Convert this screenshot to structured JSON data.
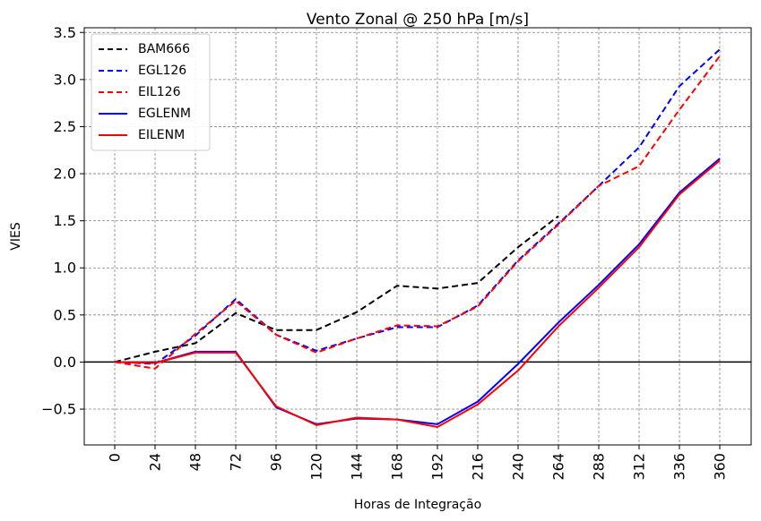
{
  "chart_data": {
    "type": "line",
    "title": "Vento Zonal @ 250 hPa [m/s]",
    "xlabel": "Horas de Integração",
    "ylabel": "VIES",
    "categories": [
      "0",
      "24",
      "48",
      "72",
      "96",
      "120",
      "144",
      "168",
      "192",
      "216",
      "240",
      "264",
      "288",
      "312",
      "336",
      "360"
    ],
    "ylim": [
      -0.88,
      3.55
    ],
    "yticks": [
      -0.5,
      0.0,
      0.5,
      1.0,
      1.5,
      2.0,
      2.5,
      3.0,
      3.5
    ],
    "ytick_labels": [
      "−0.5",
      "0.0",
      "0.5",
      "1.0",
      "1.5",
      "2.0",
      "2.5",
      "3.0",
      "3.5"
    ],
    "grid": true,
    "zero_line": true,
    "legend_position": "top-left",
    "series": [
      {
        "name": "BAM666",
        "color": "#000000",
        "style": "dashed",
        "values": [
          0.0,
          0.11,
          0.2,
          0.52,
          0.34,
          0.34,
          0.53,
          0.81,
          0.78,
          0.84,
          1.22,
          1.55,
          null,
          null,
          null,
          null
        ]
      },
      {
        "name": "EGL126",
        "color": "#0000ff",
        "style": "dashed",
        "values": [
          0.0,
          -0.02,
          0.28,
          0.67,
          0.29,
          0.12,
          0.25,
          0.37,
          0.37,
          0.6,
          1.08,
          1.47,
          1.87,
          2.28,
          2.93,
          3.32
        ]
      },
      {
        "name": "EIL126",
        "color": "#ff0000",
        "style": "dashed",
        "values": [
          0.0,
          -0.07,
          0.3,
          0.65,
          0.29,
          0.1,
          0.25,
          0.39,
          0.38,
          0.59,
          1.07,
          1.46,
          1.87,
          2.08,
          2.68,
          3.25
        ]
      },
      {
        "name": "EGLENM",
        "color": "#0000ff",
        "style": "solid",
        "values": [
          0.0,
          -0.01,
          0.11,
          0.11,
          -0.48,
          -0.66,
          -0.6,
          -0.61,
          -0.66,
          -0.42,
          -0.02,
          0.42,
          0.82,
          1.25,
          1.8,
          2.16
        ]
      },
      {
        "name": "EILENM",
        "color": "#ff0000",
        "style": "solid",
        "values": [
          0.0,
          -0.01,
          0.1,
          0.1,
          -0.47,
          -0.67,
          -0.59,
          -0.61,
          -0.69,
          -0.45,
          -0.09,
          0.38,
          0.79,
          1.22,
          1.78,
          2.14
        ]
      }
    ]
  }
}
